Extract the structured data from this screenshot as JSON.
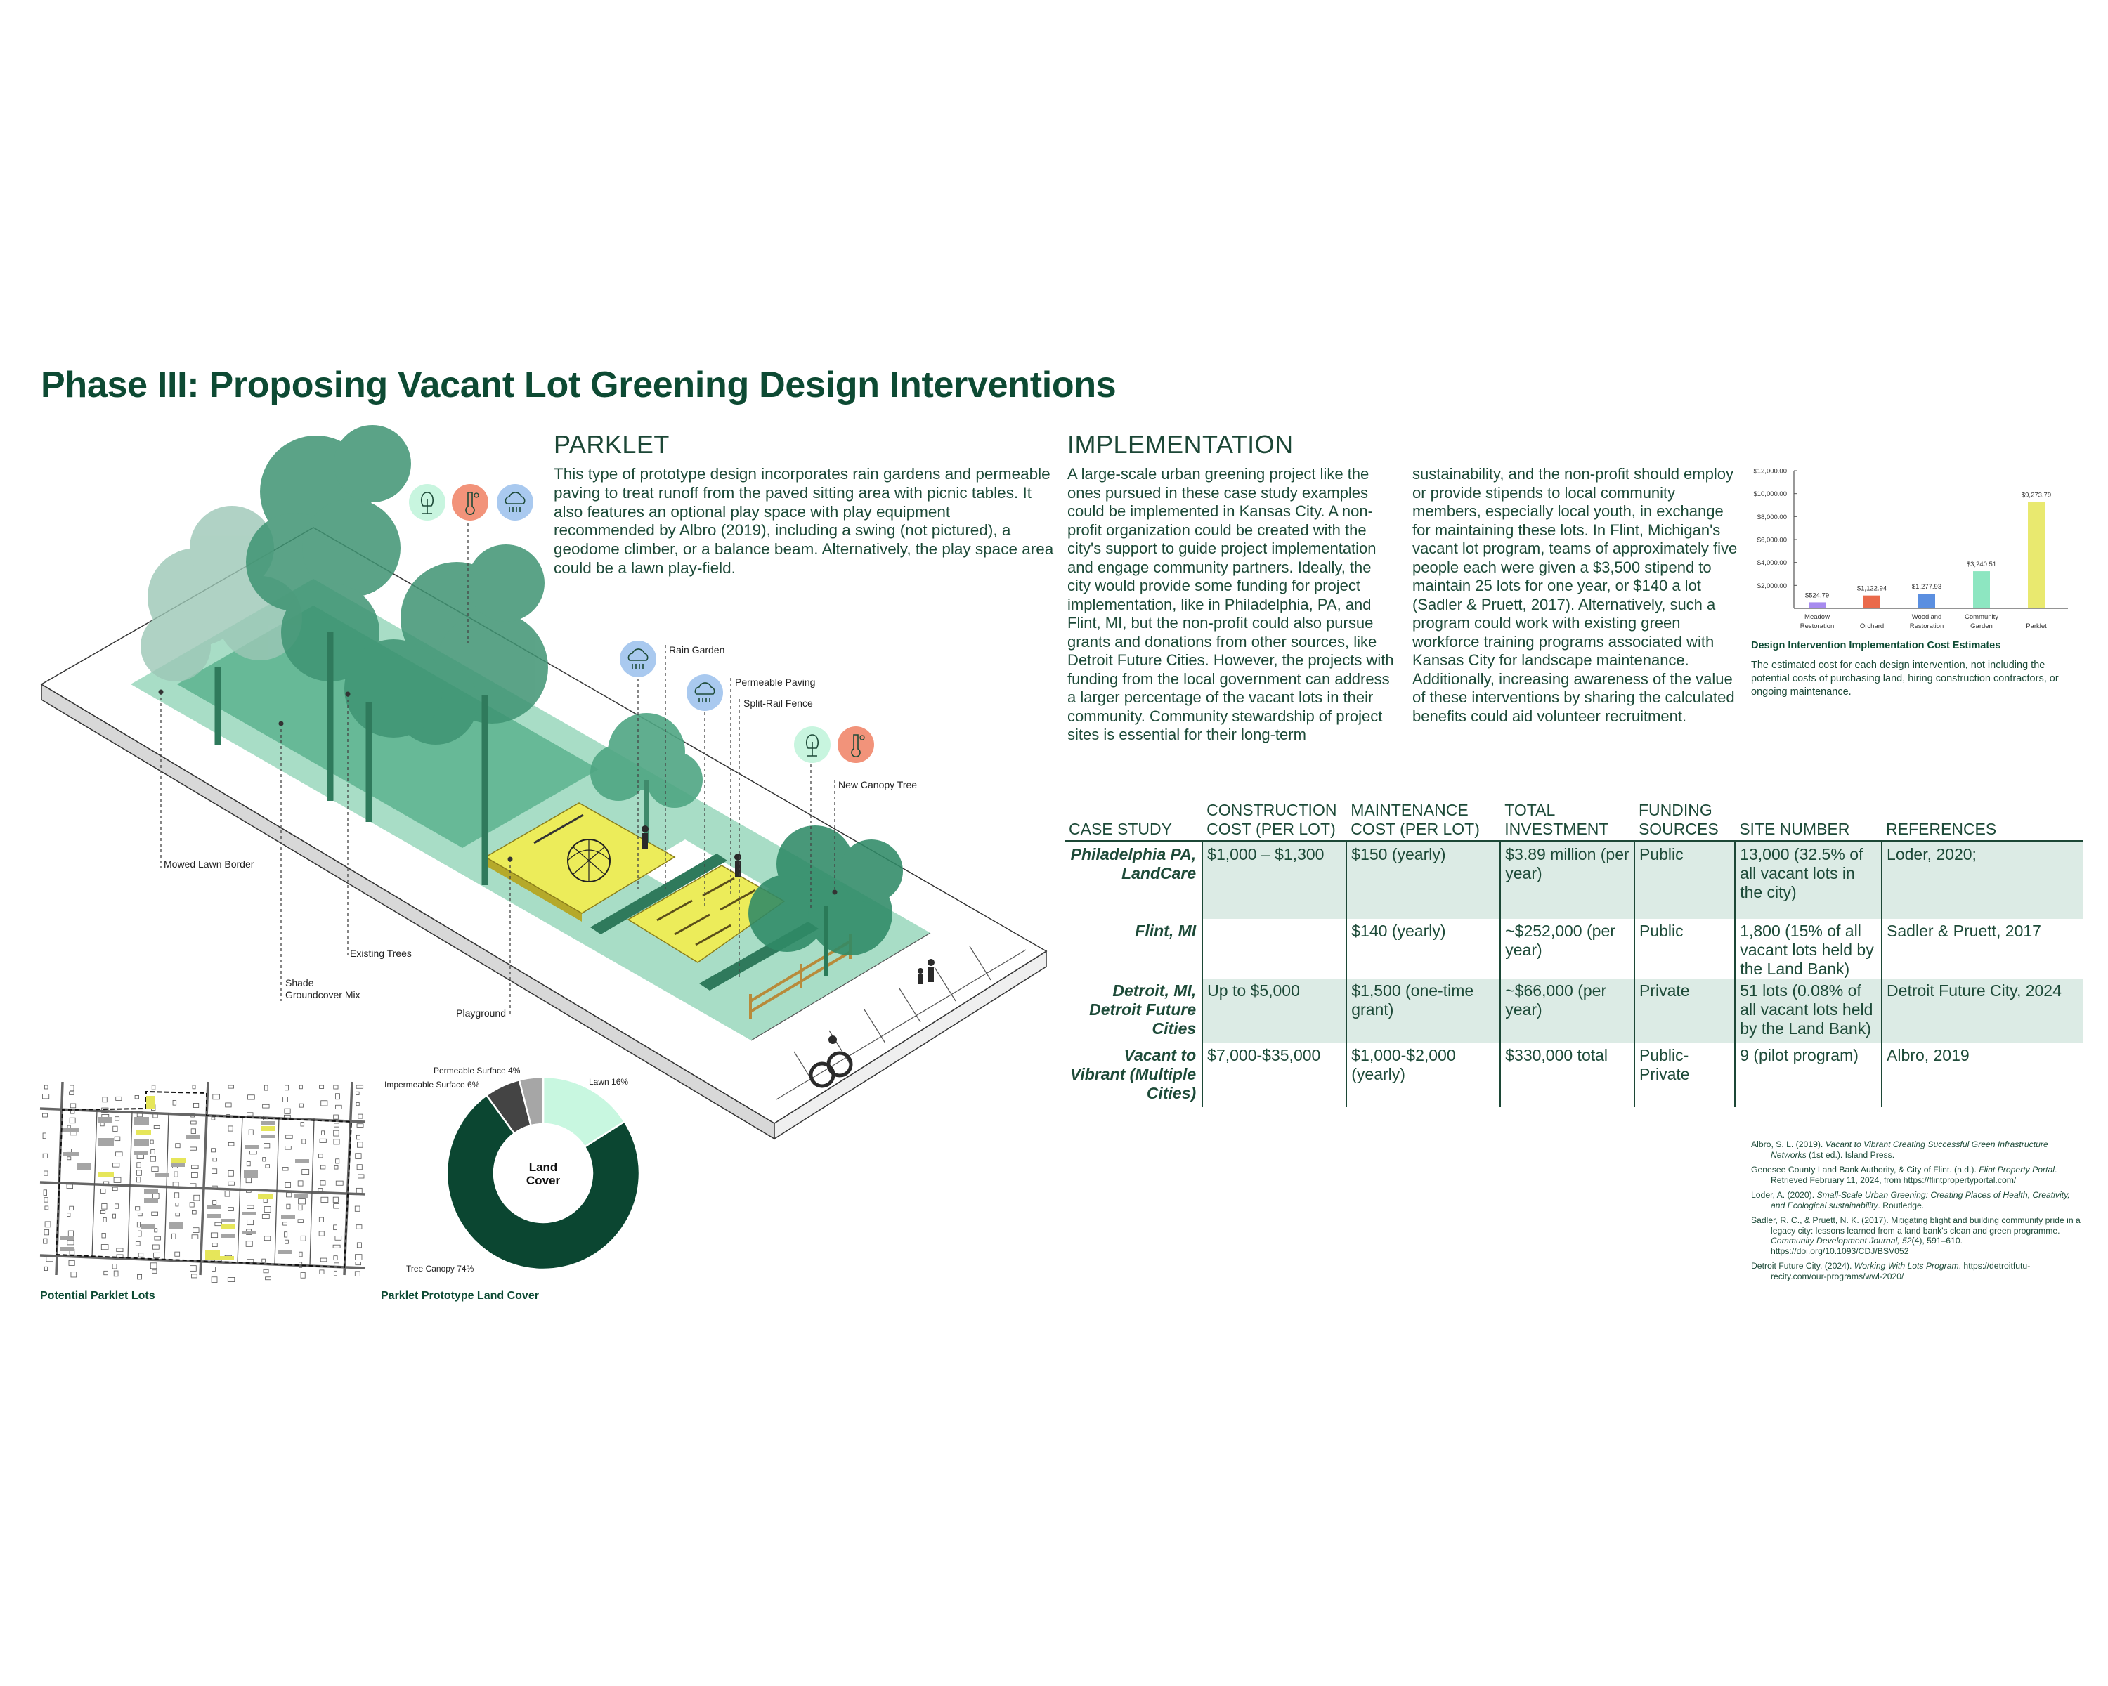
{
  "title": "Phase III: Proposing Vacant Lot Greening Design Interventions",
  "parklet": {
    "heading": "PARKLET",
    "body": "This type of prototype design incorporates rain gardens and permeable paving to treat runoff from the paved sitting area with picnic tables. It also features an optional play space with play equipment recommended by Albro (2019), including a swing (not pictured), a geodome climber, or a balance beam. Alternatively, the play space area could be a lawn play-field."
  },
  "implementation": {
    "heading": "IMPLEMENTATION",
    "body": "A large-scale urban greening project like the ones pursued in these case study examples could be implemented in Kansas City. A non-profit organization could be created with the city's support to guide project implementation and engage community partners. Ideally, the city would provide some funding for project implementation, like in Philadelphia, PA, and Flint, MI, but the non-profit could also pursue grants and donations from other sources, like Detroit Future Cities. However, the projects with funding from the local government can address a larger percentage of the vacant lots in their community. Community stewardship of project sites is essential for their long-term sustainability, and the non-profit should employ or provide stipends to local community members, especially local youth, in exchange for maintaining these lots. In Flint, Michigan's vacant lot program, teams of approximately five people each were given a $3,500 stipend to maintain 25 lots for one year, or $140 a lot (Sadler & Pruett, 2017). Alternatively, such a program could work with existing green workforce training programs associated with Kansas City for landscape maintenance. Additionally, increasing awareness of the value of these interventions by sharing the calculated benefits could aid volunteer recruitment."
  },
  "illustration": {
    "labels": {
      "rain_garden": "Rain Garden",
      "permeable_paving": "Permeable Paving",
      "split_rail_fence": "Split-Rail Fence",
      "new_canopy_tree": "New Canopy Tree",
      "mowed_lawn_border": "Mowed Lawn Border",
      "existing_trees": "Existing Trees",
      "shade": "Shade",
      "groundcover_mix": "Groundcover Mix",
      "playground": "Playground"
    },
    "icons": [
      "tree-icon",
      "thermometer-sun-icon",
      "rain-cloud-icon"
    ],
    "colors": {
      "tree_icon": "#c8f5df",
      "heat_icon": "#f2937a",
      "rain_icon": "#a9c9ef",
      "lawn": "#9ed9c0",
      "canopy": "#2f8a67",
      "play": "#ecec5a"
    }
  },
  "map": {
    "caption": "Potential Parklet Lots",
    "highlight_color": "#e6e65a"
  },
  "table": {
    "headers": [
      [
        "",
        "CASE STUDY"
      ],
      [
        "CONSTRUCTION",
        "COST (PER LOT)"
      ],
      [
        "MAINTENANCE",
        "COST (PER LOT)"
      ],
      [
        "TOTAL",
        "INVESTMENT"
      ],
      [
        "FUNDING",
        "SOURCES"
      ],
      [
        "",
        "SITE NUMBER"
      ],
      [
        "",
        "REFERENCES"
      ]
    ],
    "rows": [
      [
        "Philadelphia PA, LandCare",
        "$1,000 – $1,300",
        "$150 (yearly)",
        "$3.89 million (per year)",
        "Public",
        "13,000 (32.5% of all vacant lots in the city)",
        "Loder, 2020;"
      ],
      [
        "Flint, MI",
        "",
        "$140 (yearly)",
        "~$252,000 (per year)",
        "Public",
        "1,800 (15% of all vacant lots held by the Land Bank)",
        "Sadler & Pruett, 2017"
      ],
      [
        "Detroit, MI, Detroit Future Cities",
        "Up to $5,000",
        "$1,500 (one-time grant)",
        "~$66,000 (per year)",
        "Private",
        "51 lots (0.08% of all vacant lots held by the Land Bank)",
        "Detroit Future City, 2024"
      ],
      [
        "Vacant to Vibrant (Multiple Cities)",
        "$7,000-$35,000",
        "$1,000-$2,000 (yearly)",
        "$330,000 total",
        "Public-Private",
        "9 (pilot program)",
        "Albro, 2019"
      ]
    ]
  },
  "references": [
    {
      "pre": "Albro, S. L. (2019). ",
      "italic": "Vacant to Vibrant Creating Successful Green Infrastructure Networks",
      "post": " (1st ed.). Island Press."
    },
    {
      "pre": "Genesee County Land Bank Authority, & City of Flint. (n.d.). ",
      "italic": "Flint Property Portal",
      "post": ". Retrieved February 11, 2024, from https://flintpropertyportal.com/"
    },
    {
      "pre": "Loder, A. (2020). ",
      "italic": "Small-Scale Urban Greening: Creating Places of Health, Creativity, and Ecological sustainability",
      "post": ". Routledge."
    },
    {
      "pre": "Sadler, R. C., & Pruett, N. K. (2017). Mitigating blight and building community pride in a legacy city: lessons learned from a land bank's clean and green programme. ",
      "italic": "Community Development Journal, 52",
      "post": "(4), 591–610. https://doi.org/10.1093/CDJ/BSV052"
    },
    {
      "pre": "Detroit Future City. (2024). ",
      "italic": "Working With Lots Program",
      "post": ". https://detroitfutu-recity.com/our-programs/wwl-2020/"
    }
  ],
  "chart_data": [
    {
      "type": "bar",
      "title": "Design Intervention Implementation Cost Estimates",
      "description": "The estimated cost for each design intervention, not including the potential costs of purchasing land, hiring construction contractors, or ongoing maintenance.",
      "categories": [
        [
          "Meadow",
          "Restoration"
        ],
        [
          "",
          "Orchard"
        ],
        [
          "Woodland",
          "Restoration"
        ],
        [
          "Community",
          "Garden"
        ],
        [
          "",
          "Parklet"
        ]
      ],
      "values": [
        524.79,
        1122.94,
        1277.93,
        3240.51,
        9273.79
      ],
      "data_labels": [
        "$524.79",
        "$1,122.94",
        "$1,277.93",
        "$3,240.51",
        "$9,273.79"
      ],
      "colors": [
        "#a78bef",
        "#ea6a4b",
        "#5b8fe0",
        "#8de6c1",
        "#e9e96f"
      ],
      "yticks": [
        "$2,000.00",
        "$4,000.00",
        "$6,000.00",
        "$8,000.00",
        "$10,000.00",
        "$12,000.00"
      ],
      "ytick_values": [
        2000,
        4000,
        6000,
        8000,
        10000,
        12000
      ],
      "ylim": [
        0,
        12000
      ],
      "grid": false
    },
    {
      "type": "pie",
      "variant": "donut",
      "title": "Parklet Prototype Land Cover",
      "center_label": [
        "Land",
        "Cover"
      ],
      "slices": [
        {
          "label": "Lawn 16%",
          "value": 16,
          "color": "#c8f7e0"
        },
        {
          "label": "Tree Canopy 74%",
          "value": 74,
          "color": "#0b4631"
        },
        {
          "label": "Impermeable Surface 6%",
          "value": 6,
          "color": "#444444"
        },
        {
          "label": "Permeable Surface 4%",
          "value": 4,
          "color": "#a6a6a6"
        }
      ]
    }
  ]
}
